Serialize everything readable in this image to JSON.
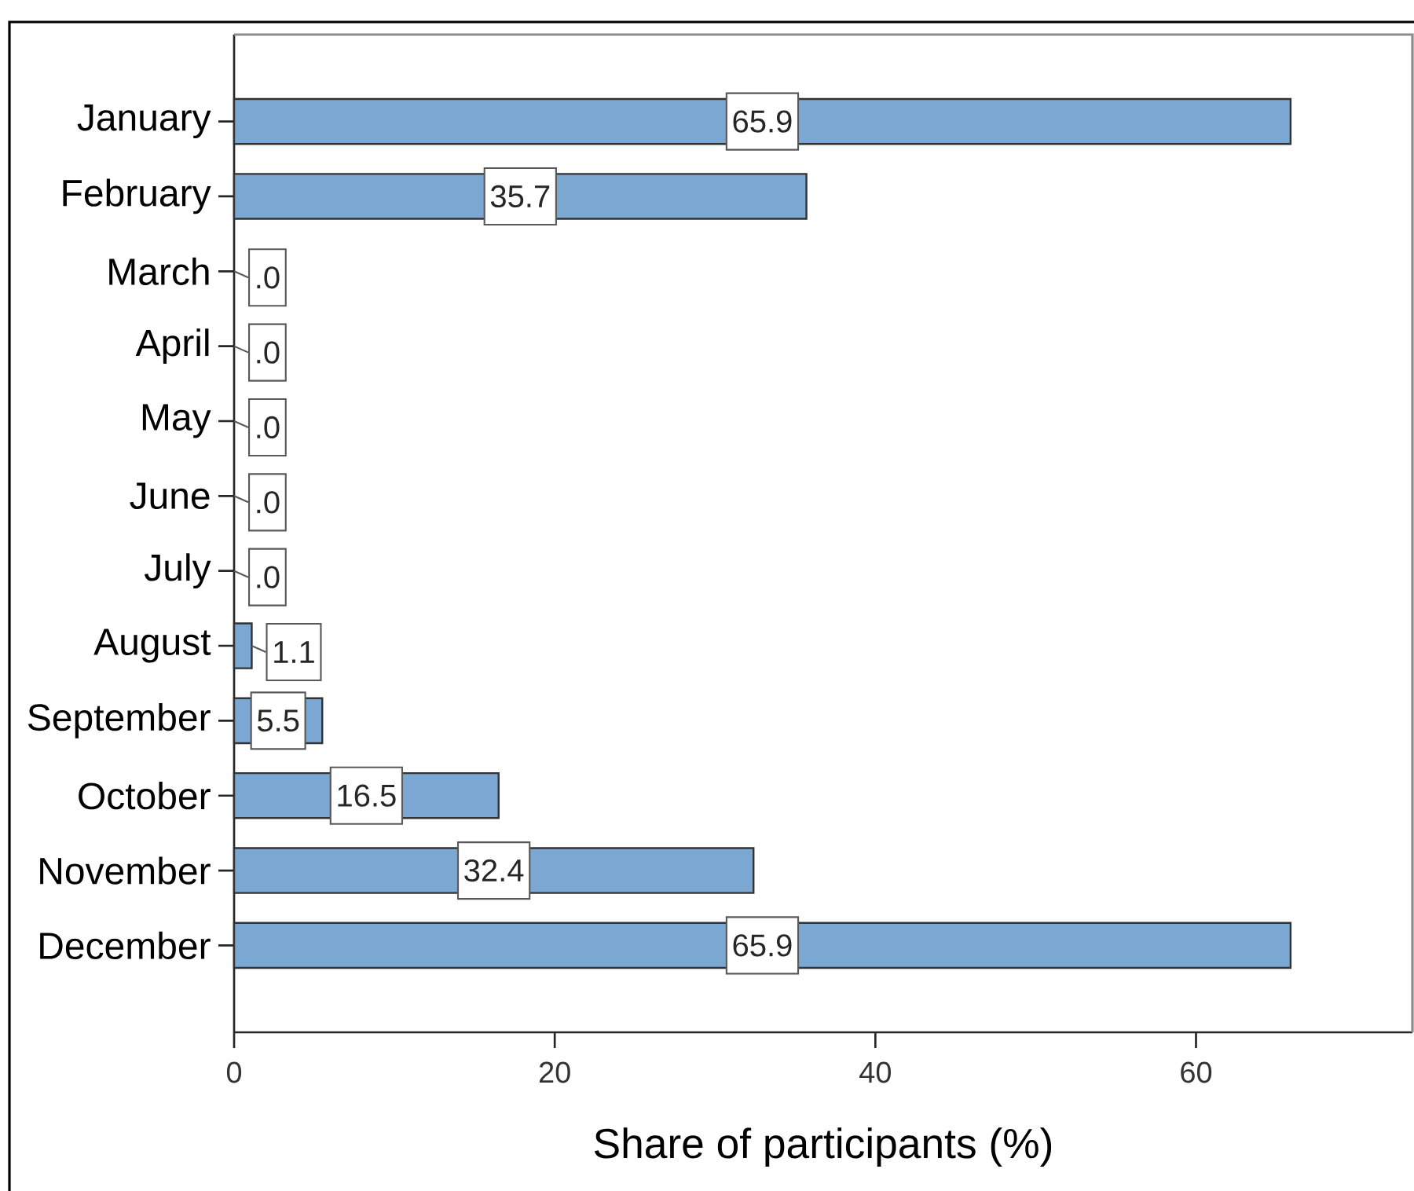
{
  "chart_data": {
    "type": "bar",
    "orientation": "horizontal",
    "categories": [
      "January",
      "February",
      "March",
      "April",
      "May",
      "June",
      "July",
      "August",
      "September",
      "October",
      "November",
      "December"
    ],
    "values": [
      65.9,
      35.7,
      0,
      0,
      0,
      0,
      0,
      1.1,
      5.5,
      16.5,
      32.4,
      65.9
    ],
    "value_labels": [
      "65.9",
      "35.7",
      ".0",
      ".0",
      ".0",
      ".0",
      ".0",
      "1.1",
      "5.5",
      "16.5",
      "32.4",
      "65.9"
    ],
    "color": "#7ba7d3",
    "xlabel": "Share of participants (%)",
    "xlim": [
      0,
      73.5
    ],
    "xticks": [
      0,
      20,
      40,
      60
    ]
  }
}
